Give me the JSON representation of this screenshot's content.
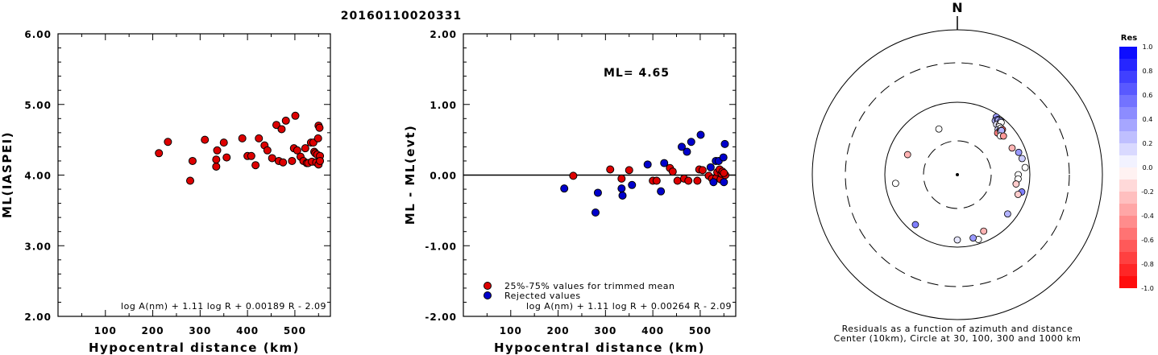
{
  "title": "20160110020331",
  "charts": [
    {
      "type": "scatter",
      "ylabel": "ML(IASPEI)",
      "xlabel": "Hypocentral distance (km)",
      "xlim": [
        0,
        575
      ],
      "ylim": [
        2.0,
        6.0
      ],
      "xticks": [
        "100",
        "200",
        "300",
        "400",
        "500"
      ],
      "xtick_values": [
        100,
        200,
        300,
        400,
        500
      ],
      "yticks": [
        "2.00",
        "3.00",
        "4.00",
        "5.00",
        "6.00"
      ],
      "ytick_values": [
        2,
        3,
        4,
        5,
        6
      ],
      "formula": "log A(nm) + 1.11 log R + 0.00189 R - 2.09",
      "point_color": "#dd0000",
      "points": [
        [
          213,
          4.31
        ],
        [
          232,
          4.47
        ],
        [
          279,
          3.92
        ],
        [
          284,
          4.2
        ],
        [
          310,
          4.5
        ],
        [
          334,
          4.12
        ],
        [
          334,
          4.22
        ],
        [
          336,
          4.35
        ],
        [
          350,
          4.46
        ],
        [
          356,
          4.25
        ],
        [
          389,
          4.52
        ],
        [
          400,
          4.27
        ],
        [
          408,
          4.27
        ],
        [
          417,
          4.14
        ],
        [
          424,
          4.52
        ],
        [
          436,
          4.42
        ],
        [
          442,
          4.35
        ],
        [
          452,
          4.24
        ],
        [
          461,
          4.71
        ],
        [
          466,
          4.2
        ],
        [
          472,
          4.65
        ],
        [
          475,
          4.18
        ],
        [
          481,
          4.77
        ],
        [
          494,
          4.2
        ],
        [
          498,
          4.38
        ],
        [
          501,
          4.84
        ],
        [
          505,
          4.35
        ],
        [
          512,
          4.26
        ],
        [
          518,
          4.2
        ],
        [
          522,
          4.38
        ],
        [
          525,
          4.17
        ],
        [
          528,
          4.17
        ],
        [
          534,
          4.46
        ],
        [
          536,
          4.19
        ],
        [
          539,
          4.46
        ],
        [
          541,
          4.33
        ],
        [
          543,
          4.31
        ],
        [
          545,
          4.18
        ],
        [
          547,
          4.29
        ],
        [
          549,
          4.52
        ],
        [
          550,
          4.15
        ],
        [
          550,
          4.7
        ],
        [
          552,
          4.67
        ],
        [
          553,
          4.27
        ],
        [
          553,
          4.2
        ]
      ]
    },
    {
      "type": "scatter",
      "ylabel": "ML - ML(evt)",
      "xlabel": "Hypocentral distance (km)",
      "xlim": [
        0,
        575
      ],
      "ylim": [
        -2.0,
        2.0
      ],
      "xticks": [
        "100",
        "200",
        "300",
        "400",
        "500"
      ],
      "xtick_values": [
        100,
        200,
        300,
        400,
        500
      ],
      "yticks": [
        "-2.00",
        "-1.00",
        "0.00",
        "1.00",
        "2.00"
      ],
      "ytick_values": [
        -2,
        -1,
        0,
        1,
        2
      ],
      "annotation": "ML= 4.65",
      "legend": [
        "25%-75% values for trimmed mean",
        "Rejected values"
      ],
      "legend_colors": [
        "#dd0000",
        "#0000cc"
      ],
      "formula": "log A(nm) + 1.11 log R + 0.00264 R - 2.09",
      "series": [
        {
          "name": "25%-75% values for trimmed mean",
          "color": "#dd0000",
          "points": [
            [
              232,
              -0.01
            ],
            [
              310,
              0.08
            ],
            [
              334,
              -0.05
            ],
            [
              350,
              0.07
            ],
            [
              400,
              -0.08
            ],
            [
              408,
              -0.08
            ],
            [
              436,
              0.1
            ],
            [
              442,
              0.05
            ],
            [
              452,
              -0.08
            ],
            [
              466,
              -0.05
            ],
            [
              475,
              -0.08
            ],
            [
              494,
              -0.08
            ],
            [
              498,
              0.08
            ],
            [
              505,
              0.07
            ],
            [
              518,
              -0.01
            ],
            [
              525,
              -0.05
            ],
            [
              534,
              -0.04
            ],
            [
              536,
              0.04
            ],
            [
              541,
              0.08
            ],
            [
              543,
              -0.06
            ],
            [
              545,
              0.02
            ],
            [
              547,
              0.05
            ],
            [
              553,
              0.0
            ],
            [
              550,
              0.03
            ]
          ]
        },
        {
          "name": "Rejected values",
          "color": "#0000cc",
          "points": [
            [
              213,
              -0.19
            ],
            [
              279,
              -0.53
            ],
            [
              284,
              -0.25
            ],
            [
              334,
              -0.19
            ],
            [
              336,
              -0.29
            ],
            [
              356,
              -0.14
            ],
            [
              389,
              0.15
            ],
            [
              417,
              -0.23
            ],
            [
              424,
              0.17
            ],
            [
              461,
              0.4
            ],
            [
              472,
              0.33
            ],
            [
              481,
              0.47
            ],
            [
              501,
              0.57
            ],
            [
              522,
              0.11
            ],
            [
              528,
              -0.1
            ],
            [
              533,
              0.2
            ],
            [
              539,
              0.2
            ],
            [
              549,
              0.25
            ],
            [
              550,
              -0.1
            ],
            [
              552,
              0.44
            ]
          ]
        }
      ]
    }
  ],
  "polar": {
    "north_label": "N",
    "caption_line1": "Residuals as a function of azimuth and distance",
    "caption_line2": "Center (10km), Circle at 30, 100, 300 and 1000 km",
    "residuals": [
      [
        34,
        480,
        0.4
      ],
      [
        35,
        455,
        0.3
      ],
      [
        36,
        470,
        0.5
      ],
      [
        37,
        470,
        0.3
      ],
      [
        38,
        440,
        0.1
      ],
      [
        39,
        475,
        0.4
      ],
      [
        40,
        450,
        -0.1
      ],
      [
        40,
        470,
        0.0
      ],
      [
        41,
        440,
        0.0
      ],
      [
        42,
        420,
        0.2
      ],
      [
        43,
        440,
        0.0
      ],
      [
        44,
        420,
        -0.2
      ],
      [
        44,
        400,
        -0.5
      ],
      [
        45,
        420,
        0.0
      ],
      [
        45,
        440,
        -0.6
      ],
      [
        45,
        430,
        0.3
      ],
      [
        48,
        400,
        0.0
      ],
      [
        50,
        415,
        -0.4
      ],
      [
        64,
        420,
        -0.3
      ],
      [
        70,
        450,
        0.4
      ],
      [
        76,
        460,
        0.2
      ],
      [
        84,
        470,
        0.0
      ],
      [
        90,
        420,
        0.0
      ],
      [
        94,
        420,
        0.0
      ],
      [
        99,
        410,
        -0.2
      ],
      [
        105,
        460,
        0.5
      ],
      [
        108,
        440,
        -0.2
      ],
      [
        128,
        440,
        0.3
      ],
      [
        155,
        430,
        -0.3
      ],
      [
        162,
        470,
        0.0
      ],
      [
        166,
        450,
        0.4
      ],
      [
        180,
        450,
        0.1
      ],
      [
        220,
        450,
        0.5
      ],
      [
        262,
        430,
        0.0
      ],
      [
        292,
        370,
        -0.3
      ],
      [
        338,
        340,
        0.0
      ]
    ]
  },
  "colorbar": {
    "title": "Res",
    "labels": [
      "1.0",
      "0.8",
      "0.6",
      "0.4",
      "0.2",
      "0.0",
      "-0.2",
      "-0.4",
      "-0.6",
      "-0.8",
      "-1.0"
    ]
  }
}
